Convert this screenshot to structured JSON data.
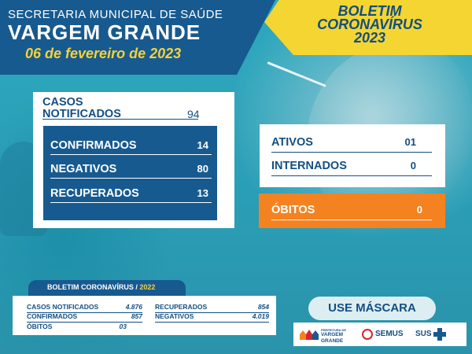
{
  "header": {
    "secretaria": "SECRETARIA MUNICIPAL DE SAÚDE",
    "city": "VARGEM GRANDE",
    "date": "06 de fevereiro de 2023"
  },
  "badge": {
    "line1": "BOLETIM",
    "line2": "CORONAVÍRUS",
    "line3": "2023"
  },
  "main": {
    "casos_label_1": "CASOS",
    "casos_label_2": "NOTIFICADOS",
    "casos_value": "94",
    "rows": [
      {
        "label": "CONFIRMADOS",
        "value": "14"
      },
      {
        "label": "NEGATIVOS",
        "value": "80"
      },
      {
        "label": "RECUPERADOS",
        "value": "13"
      }
    ]
  },
  "status": {
    "ativos": {
      "label": "ATIVOS",
      "value": "01"
    },
    "internados": {
      "label": "INTERNADOS",
      "value": "0"
    },
    "obitos": {
      "label": "ÓBITOS",
      "value": "0"
    }
  },
  "boletim_2022": {
    "title": "BOLETIM CORONAVÍRUS /",
    "year": "2022",
    "left": [
      {
        "label": "CASOS NOTIFICADOS",
        "value": "4.876"
      },
      {
        "label": "CONFIRMADOS",
        "value": "857"
      },
      {
        "label": "ÓBITOS",
        "value": "03"
      }
    ],
    "right": [
      {
        "label": "RECUPERADOS",
        "value": "854"
      },
      {
        "label": "NEGATIVOS",
        "value": "4.019"
      }
    ]
  },
  "footer": {
    "mask_label": "USE MÁSCARA",
    "logo_vg_line1": "PREFEITURA DE",
    "logo_vg_line2": "VARGEM",
    "logo_vg_line3": "GRANDE",
    "logo_semus": "SEMUS",
    "logo_sus": "SUS"
  },
  "colors": {
    "navy": "#175a8f",
    "yellow": "#f4d531",
    "orange": "#f58220",
    "teal": "#2a9fb6"
  }
}
